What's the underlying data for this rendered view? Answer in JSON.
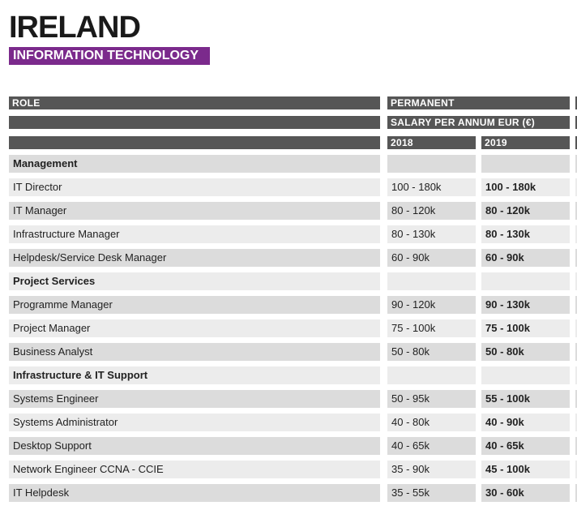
{
  "header": {
    "title": "IRELAND",
    "subtitle": "INFORMATION TECHNOLOGY"
  },
  "table": {
    "columns": {
      "role": "ROLE",
      "group": "PERMANENT",
      "subgroup": "SALARY PER ANNUM EUR (€)",
      "years": [
        "2018",
        "2019"
      ]
    },
    "rows": [
      [
        "Management"
      ],
      [
        "IT Director",
        "100 - 180k",
        "100 - 180k"
      ],
      [
        "IT Manager",
        "80 - 120k",
        "80 - 120k"
      ],
      [
        "Infrastructure Manager",
        "80 - 130k",
        "80 - 130k"
      ],
      [
        "Helpdesk/Service Desk Manager",
        "60 - 90k",
        "60 - 90k"
      ],
      [
        "Project Services"
      ],
      [
        "Programme Manager",
        "90 - 120k",
        "90 - 130k"
      ],
      [
        "Project Manager",
        "75 - 100k",
        "75 - 100k"
      ],
      [
        "Business Analyst",
        "50 - 80k",
        "50 - 80k"
      ],
      [
        "Infrastructure & IT Support"
      ],
      [
        "Systems Engineer",
        "50 - 95k",
        "55 - 100k"
      ],
      [
        "Systems Administrator",
        "40 - 80k",
        "40 - 90k"
      ],
      [
        "Desktop Support",
        "40 - 65k",
        "40 - 65k"
      ],
      [
        "Network Engineer CCNA - CCIE",
        "35 - 90k",
        "45 - 100k"
      ],
      [
        "IT Helpdesk",
        "35 - 55k",
        "30 - 60k"
      ]
    ]
  }
}
